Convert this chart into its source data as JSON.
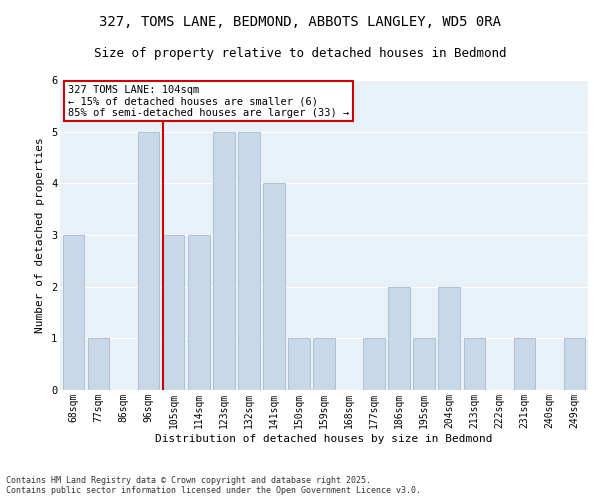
{
  "title1": "327, TOMS LANE, BEDMOND, ABBOTS LANGLEY, WD5 0RA",
  "title2": "Size of property relative to detached houses in Bedmond",
  "xlabel": "Distribution of detached houses by size in Bedmond",
  "ylabel": "Number of detached properties",
  "categories": [
    "68sqm",
    "77sqm",
    "86sqm",
    "96sqm",
    "105sqm",
    "114sqm",
    "123sqm",
    "132sqm",
    "141sqm",
    "150sqm",
    "159sqm",
    "168sqm",
    "177sqm",
    "186sqm",
    "195sqm",
    "204sqm",
    "213sqm",
    "222sqm",
    "231sqm",
    "240sqm",
    "249sqm"
  ],
  "values": [
    3,
    1,
    0,
    5,
    3,
    3,
    5,
    5,
    4,
    1,
    1,
    0,
    1,
    2,
    1,
    2,
    1,
    0,
    1,
    0,
    1
  ],
  "bar_color": "#c8d8e8",
  "bar_edge_color": "#a8bccb",
  "red_line_x": 4,
  "annotation_text": "327 TOMS LANE: 104sqm\n← 15% of detached houses are smaller (6)\n85% of semi-detached houses are larger (33) →",
  "annotation_box_color": "#ffffff",
  "annotation_box_edge": "#cc0000",
  "red_line_color": "#cc0000",
  "ylim": [
    0,
    6
  ],
  "yticks": [
    0,
    1,
    2,
    3,
    4,
    5,
    6
  ],
  "background_color": "#e8f0f8",
  "grid_color": "#ffffff",
  "footer": "Contains HM Land Registry data © Crown copyright and database right 2025.\nContains public sector information licensed under the Open Government Licence v3.0.",
  "title_fontsize": 10,
  "subtitle_fontsize": 9,
  "tick_fontsize": 7,
  "ylabel_fontsize": 8,
  "xlabel_fontsize": 8,
  "annotation_fontsize": 7.5,
  "footer_fontsize": 6
}
